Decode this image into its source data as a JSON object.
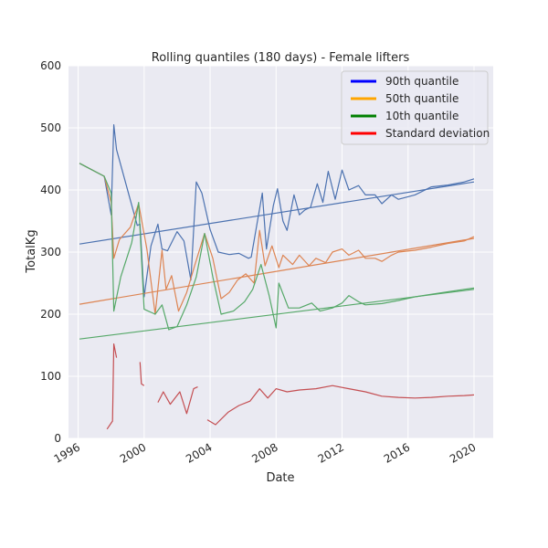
{
  "chart_data": {
    "type": "line",
    "title": "Rolling quantiles (180 days) - Female lifters",
    "xlabel": "Date",
    "ylabel": "TotalKg",
    "xlim": [
      "1995-06-01",
      "2021-03-01"
    ],
    "ylim": [
      0,
      600
    ],
    "xticks": [
      "1996",
      "2000",
      "2004",
      "2008",
      "2012",
      "2016",
      "2020"
    ],
    "yticks": [
      0,
      100,
      200,
      300,
      400,
      500,
      600
    ],
    "grid": true,
    "legend_position": "top-right",
    "legend": [
      {
        "label": "90th quantile",
        "color": "#0000ff"
      },
      {
        "label": "50th quantile",
        "color": "#ffa500"
      },
      {
        "label": "10th quantile",
        "color": "#008000"
      },
      {
        "label": "Standard deviation",
        "color": "#ff0000"
      }
    ],
    "series": [
      {
        "color": "#4c72b0",
        "values": [
          [
            "1996-02-01",
            443
          ],
          [
            "1997-08-01",
            422
          ],
          [
            "1998-01-01",
            360
          ],
          [
            "1998-03-01",
            505
          ],
          [
            "1998-05-01",
            465
          ],
          [
            "1999-08-01",
            343
          ],
          [
            "1999-10-01",
            345
          ],
          [
            "2000-01-01",
            228
          ],
          [
            "2000-06-01",
            310
          ],
          [
            "2000-11-01",
            345
          ],
          [
            "2001-02-01",
            305
          ],
          [
            "2001-06-01",
            302
          ],
          [
            "2002-01-01",
            333
          ],
          [
            "2002-06-01",
            318
          ],
          [
            "2002-11-01",
            255
          ],
          [
            "2003-03-01",
            413
          ],
          [
            "2003-07-01",
            395
          ],
          [
            "2004-01-01",
            336
          ],
          [
            "2004-07-01",
            300
          ],
          [
            "2005-03-01",
            296
          ],
          [
            "2005-10-01",
            298
          ],
          [
            "2006-05-01",
            290
          ],
          [
            "2006-07-01",
            292
          ],
          [
            "2007-03-01",
            395
          ],
          [
            "2007-06-01",
            305
          ],
          [
            "2007-11-01",
            375
          ],
          [
            "2008-02-01",
            402
          ],
          [
            "2008-06-01",
            350
          ],
          [
            "2008-09-01",
            335
          ],
          [
            "2009-02-01",
            392
          ],
          [
            "2009-06-01",
            360
          ],
          [
            "2009-10-01",
            368
          ],
          [
            "2010-02-01",
            372
          ],
          [
            "2010-07-01",
            410
          ],
          [
            "2010-11-01",
            380
          ],
          [
            "2011-03-01",
            430
          ],
          [
            "2011-08-01",
            385
          ],
          [
            "2012-01-01",
            432
          ],
          [
            "2012-06-01",
            400
          ],
          [
            "2013-01-01",
            407
          ],
          [
            "2013-06-01",
            392
          ],
          [
            "2014-01-01",
            392
          ],
          [
            "2014-06-01",
            378
          ],
          [
            "2015-01-01",
            392
          ],
          [
            "2015-06-01",
            385
          ],
          [
            "2016-06-01",
            392
          ],
          [
            "2017-06-01",
            405
          ],
          [
            "2018-06-01",
            408
          ],
          [
            "2019-06-01",
            413
          ],
          [
            "2020-01-01",
            418
          ]
        ]
      },
      {
        "color": "#4c72b0",
        "values": [
          [
            "1996-02-01",
            313
          ],
          [
            "2020-01-01",
            413
          ]
        ]
      },
      {
        "color": "#dd8452",
        "values": [
          [
            "1996-02-01",
            443
          ],
          [
            "1997-08-01",
            422
          ],
          [
            "1998-01-01",
            380
          ],
          [
            "1998-03-01",
            290
          ],
          [
            "1998-07-01",
            320
          ],
          [
            "1999-03-01",
            340
          ],
          [
            "1999-09-01",
            378
          ],
          [
            "2000-03-01",
            305
          ],
          [
            "2000-09-01",
            200
          ],
          [
            "2001-02-01",
            303
          ],
          [
            "2001-05-01",
            240
          ],
          [
            "2001-09-01",
            262
          ],
          [
            "2002-02-01",
            205
          ],
          [
            "2002-08-01",
            235
          ],
          [
            "2003-02-01",
            280
          ],
          [
            "2003-09-01",
            330
          ],
          [
            "2004-03-01",
            290
          ],
          [
            "2004-09-01",
            225
          ],
          [
            "2005-03-01",
            235
          ],
          [
            "2005-09-01",
            255
          ],
          [
            "2006-03-01",
            265
          ],
          [
            "2006-09-01",
            250
          ],
          [
            "2007-01-01",
            335
          ],
          [
            "2007-05-01",
            278
          ],
          [
            "2007-10-01",
            310
          ],
          [
            "2008-03-01",
            275
          ],
          [
            "2008-06-01",
            295
          ],
          [
            "2009-01-01",
            280
          ],
          [
            "2009-06-01",
            295
          ],
          [
            "2010-01-01",
            278
          ],
          [
            "2010-06-01",
            290
          ],
          [
            "2011-01-01",
            283
          ],
          [
            "2011-06-01",
            300
          ],
          [
            "2012-01-01",
            305
          ],
          [
            "2012-06-01",
            295
          ],
          [
            "2013-01-01",
            303
          ],
          [
            "2013-06-01",
            290
          ],
          [
            "2014-01-01",
            290
          ],
          [
            "2014-06-01",
            285
          ],
          [
            "2015-01-01",
            295
          ],
          [
            "2015-06-01",
            300
          ],
          [
            "2016-06-01",
            303
          ],
          [
            "2017-06-01",
            308
          ],
          [
            "2018-06-01",
            314
          ],
          [
            "2019-06-01",
            318
          ],
          [
            "2020-01-01",
            325
          ]
        ]
      },
      {
        "color": "#dd8452",
        "values": [
          [
            "1996-02-01",
            216
          ],
          [
            "2020-01-01",
            322
          ]
        ]
      },
      {
        "color": "#55a868",
        "values": [
          [
            "1996-02-01",
            443
          ],
          [
            "1997-08-01",
            422
          ],
          [
            "1998-01-01",
            395
          ],
          [
            "1998-03-01",
            205
          ],
          [
            "1998-08-01",
            260
          ],
          [
            "1999-04-01",
            315
          ],
          [
            "1999-09-01",
            380
          ],
          [
            "2000-01-01",
            208
          ],
          [
            "2000-09-01",
            200
          ],
          [
            "2001-02-01",
            215
          ],
          [
            "2001-07-01",
            175
          ],
          [
            "2002-01-01",
            180
          ],
          [
            "2002-08-01",
            215
          ],
          [
            "2003-03-01",
            260
          ],
          [
            "2003-09-01",
            330
          ],
          [
            "2004-03-01",
            260
          ],
          [
            "2004-09-01",
            200
          ],
          [
            "2005-06-01",
            205
          ],
          [
            "2006-02-01",
            220
          ],
          [
            "2006-08-01",
            240
          ],
          [
            "2007-02-01",
            280
          ],
          [
            "2007-08-01",
            230
          ],
          [
            "2008-01-01",
            178
          ],
          [
            "2008-03-01",
            250
          ],
          [
            "2008-10-01",
            210
          ],
          [
            "2009-06-01",
            210
          ],
          [
            "2010-03-01",
            218
          ],
          [
            "2010-09-01",
            205
          ],
          [
            "2011-06-01",
            210
          ],
          [
            "2012-01-01",
            218
          ],
          [
            "2012-06-01",
            230
          ],
          [
            "2013-01-01",
            220
          ],
          [
            "2013-06-01",
            215
          ],
          [
            "2014-06-01",
            217
          ],
          [
            "2015-06-01",
            222
          ],
          [
            "2016-06-01",
            228
          ],
          [
            "2017-06-01",
            232
          ],
          [
            "2018-06-01",
            236
          ],
          [
            "2019-06-01",
            240
          ],
          [
            "2020-01-01",
            242
          ]
        ]
      },
      {
        "color": "#55a868",
        "values": [
          [
            "1996-02-01",
            160
          ],
          [
            "2020-01-01",
            240
          ]
        ]
      },
      {
        "color": "#c44e52",
        "values": [
          [
            "1997-10-01",
            15
          ],
          [
            "1998-02-01",
            28
          ],
          [
            "1998-03-01",
            152
          ],
          [
            "1998-05-01",
            130
          ]
        ]
      },
      {
        "color": "#c44e52",
        "values": [
          [
            "1999-10-01",
            123
          ],
          [
            "1999-11-01",
            88
          ],
          [
            "2000-01-01",
            85
          ]
        ]
      },
      {
        "color": "#c44e52",
        "values": [
          [
            "2000-11-01",
            58
          ],
          [
            "2001-03-01",
            75
          ],
          [
            "2001-08-01",
            55
          ],
          [
            "2002-03-01",
            75
          ],
          [
            "2002-08-01",
            40
          ],
          [
            "2003-01-01",
            80
          ],
          [
            "2003-04-01",
            83
          ]
        ]
      },
      {
        "color": "#c44e52",
        "values": [
          [
            "2003-11-01",
            30
          ],
          [
            "2004-05-01",
            22
          ],
          [
            "2005-02-01",
            42
          ],
          [
            "2005-10-01",
            53
          ],
          [
            "2006-06-01",
            60
          ],
          [
            "2007-01-01",
            80
          ],
          [
            "2007-07-01",
            65
          ],
          [
            "2008-01-01",
            80
          ],
          [
            "2008-09-01",
            75
          ],
          [
            "2009-06-01",
            78
          ],
          [
            "2010-06-01",
            80
          ],
          [
            "2011-06-01",
            85
          ],
          [
            "2012-06-01",
            80
          ],
          [
            "2013-06-01",
            75
          ],
          [
            "2014-06-01",
            68
          ],
          [
            "2015-06-01",
            66
          ],
          [
            "2016-06-01",
            65
          ],
          [
            "2017-06-01",
            66
          ],
          [
            "2018-06-01",
            68
          ],
          [
            "2019-06-01",
            69
          ],
          [
            "2020-01-01",
            70
          ]
        ]
      }
    ]
  }
}
